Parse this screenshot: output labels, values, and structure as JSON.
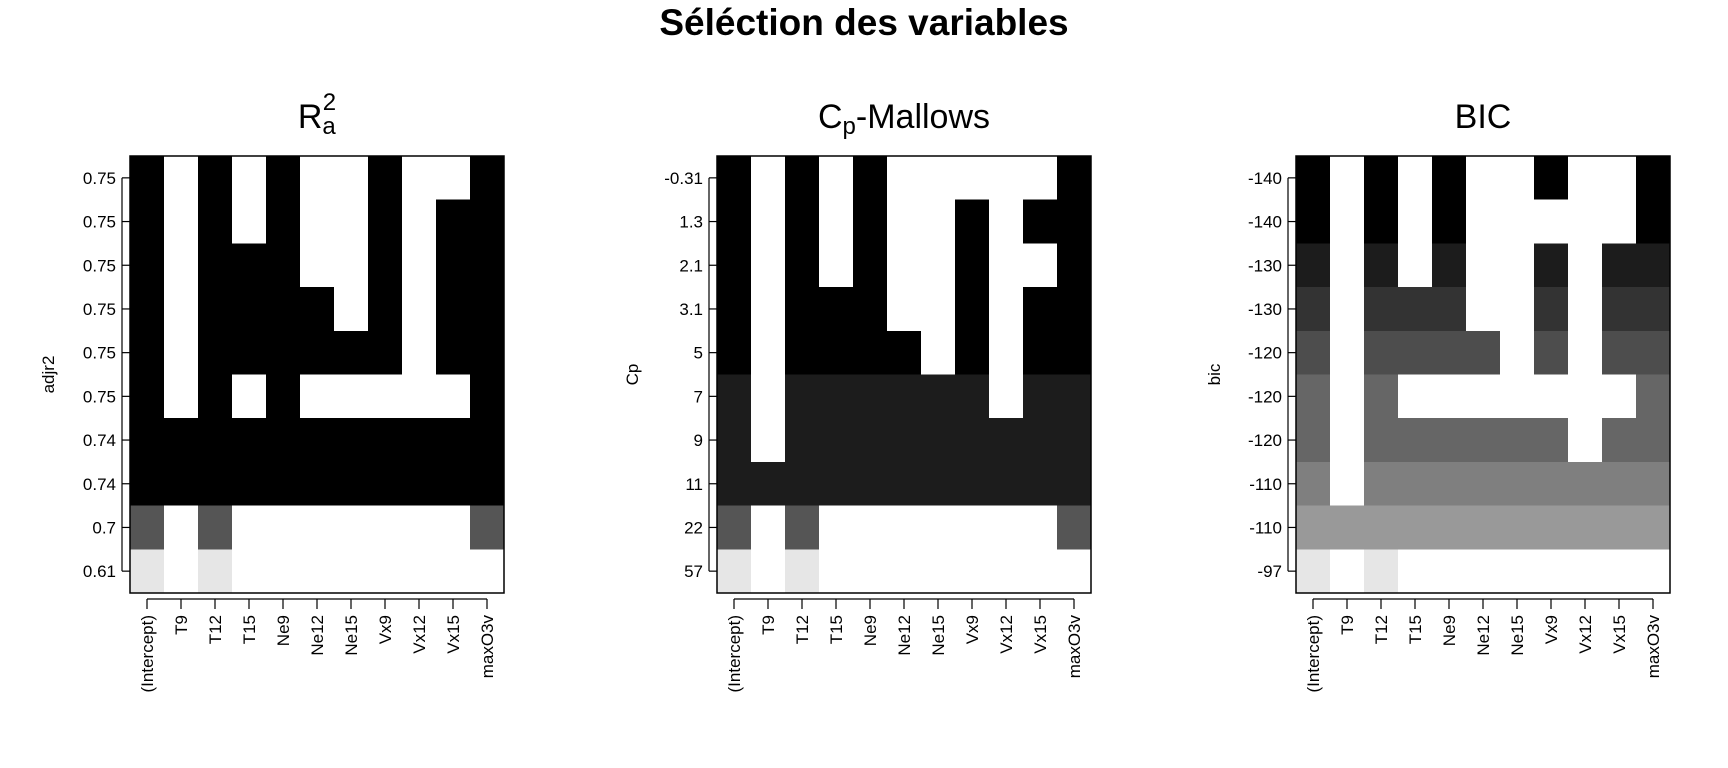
{
  "title": "Séléction des variables",
  "chart_data": [
    {
      "type": "heatmap",
      "title": {
        "main": "R",
        "sub": "a",
        "sup": "2"
      },
      "ylabel": "adjr2",
      "xlabel": "",
      "categories": [
        "(Intercept)",
        "T9",
        "T12",
        "T15",
        "Ne9",
        "Ne12",
        "Ne15",
        "Vx9",
        "Vx12",
        "Vx15",
        "maxO3v"
      ],
      "y_tick_labels": [
        "0.75",
        "0.75",
        "0.75",
        "0.75",
        "0.75",
        "0.75",
        "0.74",
        "0.74",
        "0.7",
        "0.61"
      ],
      "row_shades": [
        "#000000",
        "#000000",
        "#000000",
        "#000000",
        "#000000",
        "#000000",
        "#000000",
        "#000000",
        "#555555",
        "#e6e6e6"
      ],
      "inclusion": [
        [
          1,
          0,
          1,
          0,
          1,
          0,
          0,
          1,
          0,
          0,
          1
        ],
        [
          1,
          0,
          1,
          0,
          1,
          0,
          0,
          1,
          0,
          1,
          1
        ],
        [
          1,
          0,
          1,
          1,
          1,
          0,
          0,
          1,
          0,
          1,
          1
        ],
        [
          1,
          0,
          1,
          1,
          1,
          1,
          0,
          1,
          0,
          1,
          1
        ],
        [
          1,
          0,
          1,
          1,
          1,
          1,
          1,
          1,
          0,
          1,
          1
        ],
        [
          1,
          0,
          1,
          0,
          1,
          0,
          0,
          0,
          0,
          0,
          1
        ],
        [
          1,
          1,
          1,
          1,
          1,
          1,
          1,
          1,
          1,
          1,
          1
        ],
        [
          1,
          1,
          1,
          1,
          1,
          1,
          1,
          1,
          1,
          1,
          1
        ],
        [
          1,
          0,
          1,
          0,
          0,
          0,
          0,
          0,
          0,
          0,
          1
        ],
        [
          1,
          0,
          1,
          0,
          0,
          0,
          0,
          0,
          0,
          0,
          0
        ]
      ]
    },
    {
      "type": "heatmap",
      "title": {
        "main": "C",
        "sub": "p",
        "sup": "",
        "after": "-Mallows"
      },
      "ylabel": "Cp",
      "xlabel": "",
      "categories": [
        "(Intercept)",
        "T9",
        "T12",
        "T15",
        "Ne9",
        "Ne12",
        "Ne15",
        "Vx9",
        "Vx12",
        "Vx15",
        "maxO3v"
      ],
      "y_tick_labels": [
        "-0.31",
        "1.3",
        "2.1",
        "3.1",
        "5",
        "7",
        "9",
        "11",
        "22",
        "57"
      ],
      "row_shades": [
        "#000000",
        "#000000",
        "#000000",
        "#000000",
        "#000000",
        "#1c1c1c",
        "#1c1c1c",
        "#1c1c1c",
        "#555555",
        "#e6e6e6"
      ],
      "inclusion": [
        [
          1,
          0,
          1,
          0,
          1,
          0,
          0,
          0,
          0,
          0,
          1
        ],
        [
          1,
          0,
          1,
          0,
          1,
          0,
          0,
          1,
          0,
          1,
          1
        ],
        [
          1,
          0,
          1,
          0,
          1,
          0,
          0,
          1,
          0,
          0,
          1
        ],
        [
          1,
          0,
          1,
          1,
          1,
          0,
          0,
          1,
          0,
          1,
          1
        ],
        [
          1,
          0,
          1,
          1,
          1,
          1,
          0,
          1,
          0,
          1,
          1
        ],
        [
          1,
          0,
          1,
          1,
          1,
          1,
          1,
          1,
          0,
          1,
          1
        ],
        [
          1,
          0,
          1,
          1,
          1,
          1,
          1,
          1,
          1,
          1,
          1
        ],
        [
          1,
          1,
          1,
          1,
          1,
          1,
          1,
          1,
          1,
          1,
          1
        ],
        [
          1,
          0,
          1,
          0,
          0,
          0,
          0,
          0,
          0,
          0,
          1
        ],
        [
          1,
          0,
          1,
          0,
          0,
          0,
          0,
          0,
          0,
          0,
          0
        ]
      ]
    },
    {
      "type": "heatmap",
      "title": {
        "main": "BIC",
        "sub": "",
        "sup": ""
      },
      "ylabel": "bic",
      "xlabel": "",
      "categories": [
        "(Intercept)",
        "T9",
        "T12",
        "T15",
        "Ne9",
        "Ne12",
        "Ne15",
        "Vx9",
        "Vx12",
        "Vx15",
        "maxO3v"
      ],
      "y_tick_labels": [
        "-140",
        "-140",
        "-130",
        "-130",
        "-120",
        "-120",
        "-120",
        "-110",
        "-110",
        "-97"
      ],
      "row_shades": [
        "#000000",
        "#000000",
        "#1c1c1c",
        "#333333",
        "#4d4d4d",
        "#666666",
        "#666666",
        "#7f7f7f",
        "#999999",
        "#e6e6e6"
      ],
      "inclusion": [
        [
          1,
          0,
          1,
          0,
          1,
          0,
          0,
          1,
          0,
          0,
          1
        ],
        [
          1,
          0,
          1,
          0,
          1,
          0,
          0,
          0,
          0,
          0,
          1
        ],
        [
          1,
          0,
          1,
          0,
          1,
          0,
          0,
          1,
          0,
          1,
          1
        ],
        [
          1,
          0,
          1,
          1,
          1,
          0,
          0,
          1,
          0,
          1,
          1
        ],
        [
          1,
          0,
          1,
          1,
          1,
          1,
          0,
          1,
          0,
          1,
          1
        ],
        [
          1,
          0,
          1,
          0,
          0,
          0,
          0,
          0,
          0,
          0,
          1
        ],
        [
          1,
          0,
          1,
          1,
          1,
          1,
          1,
          1,
          0,
          1,
          1
        ],
        [
          1,
          0,
          1,
          1,
          1,
          1,
          1,
          1,
          1,
          1,
          1
        ],
        [
          1,
          1,
          1,
          1,
          1,
          1,
          1,
          1,
          1,
          1,
          1
        ],
        [
          1,
          0,
          1,
          0,
          0,
          0,
          0,
          0,
          0,
          0,
          0
        ]
      ]
    }
  ]
}
